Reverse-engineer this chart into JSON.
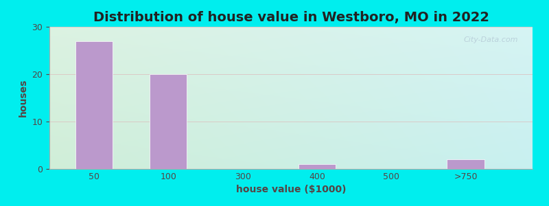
{
  "title": "Distribution of house value in Westboro, MO in 2022",
  "xlabel": "house value ($1000)",
  "ylabel": "houses",
  "categories": [
    "50",
    "100",
    "300",
    "400",
    "500",
    ">750"
  ],
  "values": [
    27,
    20,
    0,
    1,
    0,
    2
  ],
  "bar_color": "#bb99cc",
  "background_outer": "#00eeee",
  "grad_left": "#d8edd8",
  "grad_right": "#cceef5",
  "grad_top": "#e8f8f8",
  "ylim": [
    0,
    30
  ],
  "yticks": [
    0,
    10,
    20,
    30
  ],
  "title_fontsize": 14,
  "label_fontsize": 10,
  "tick_fontsize": 9,
  "title_color": "#222222",
  "label_color": "#554444",
  "tick_color": "#554444",
  "bar_positions": [
    0,
    1,
    2,
    3,
    4,
    5
  ],
  "bar_width": 0.5,
  "xlim": [
    -0.6,
    5.9
  ]
}
